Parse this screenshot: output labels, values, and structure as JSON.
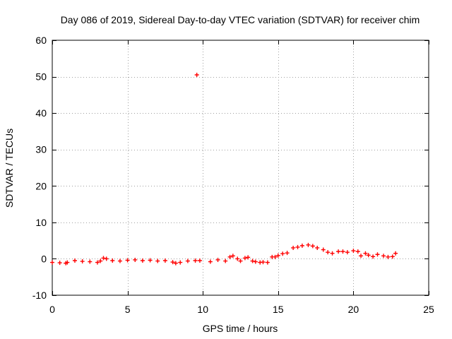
{
  "chart_data": {
    "type": "scatter",
    "title": "Day 086 of 2019, Sidereal Day-to-day VTEC variation (SDTVAR) for receiver chim",
    "xlabel": "GPS time / hours",
    "ylabel": "SDTVAR / TECUs",
    "xlim": [
      0,
      25
    ],
    "ylim": [
      -10,
      60
    ],
    "xticks": [
      0,
      5,
      10,
      15,
      20,
      25
    ],
    "yticks": [
      -10,
      0,
      10,
      20,
      30,
      40,
      50,
      60
    ],
    "xtick_labels": [
      "0",
      "5",
      "10",
      "15",
      "20",
      "25"
    ],
    "ytick_labels": [
      "-10",
      "0",
      "10",
      "20",
      "30",
      "40",
      "50",
      "60"
    ],
    "grid": true,
    "marker": "+",
    "series": [
      {
        "name": "SDTVAR",
        "color": "#ff0000",
        "x": [
          0.0,
          0.5,
          0.9,
          1.0,
          1.5,
          2.0,
          2.5,
          3.0,
          3.2,
          3.4,
          3.6,
          4.0,
          4.5,
          5.0,
          5.5,
          6.0,
          6.5,
          7.0,
          7.5,
          8.0,
          8.2,
          8.5,
          9.0,
          9.5,
          9.6,
          9.8,
          10.5,
          11.0,
          11.5,
          11.8,
          12.0,
          12.3,
          12.5,
          12.8,
          13.0,
          13.3,
          13.5,
          13.8,
          14.0,
          14.3,
          14.6,
          14.8,
          15.0,
          15.3,
          15.6,
          16.0,
          16.3,
          16.6,
          17.0,
          17.3,
          17.6,
          18.0,
          18.3,
          18.6,
          19.0,
          19.3,
          19.6,
          20.0,
          20.3,
          20.5,
          20.8,
          21.0,
          21.3,
          21.6,
          22.0,
          22.3,
          22.6,
          22.8
        ],
        "y": [
          -1.0,
          -1.1,
          -1.2,
          -1.0,
          -0.5,
          -0.7,
          -0.8,
          -1.0,
          -0.6,
          0.2,
          0.0,
          -0.5,
          -0.6,
          -0.4,
          -0.3,
          -0.5,
          -0.4,
          -0.6,
          -0.5,
          -0.9,
          -1.2,
          -1.0,
          -0.6,
          -0.5,
          50.5,
          -0.5,
          -0.8,
          -0.3,
          -0.6,
          0.5,
          0.8,
          0.0,
          -0.6,
          0.2,
          0.4,
          -0.6,
          -0.8,
          -1.0,
          -0.9,
          -1.0,
          0.5,
          0.5,
          0.9,
          1.4,
          1.6,
          3.0,
          3.2,
          3.6,
          3.8,
          3.5,
          3.0,
          2.5,
          1.8,
          1.5,
          2.0,
          2.0,
          1.8,
          2.2,
          2.0,
          0.8,
          1.5,
          1.0,
          0.6,
          1.2,
          0.8,
          0.5,
          0.6,
          1.5
        ]
      }
    ]
  }
}
